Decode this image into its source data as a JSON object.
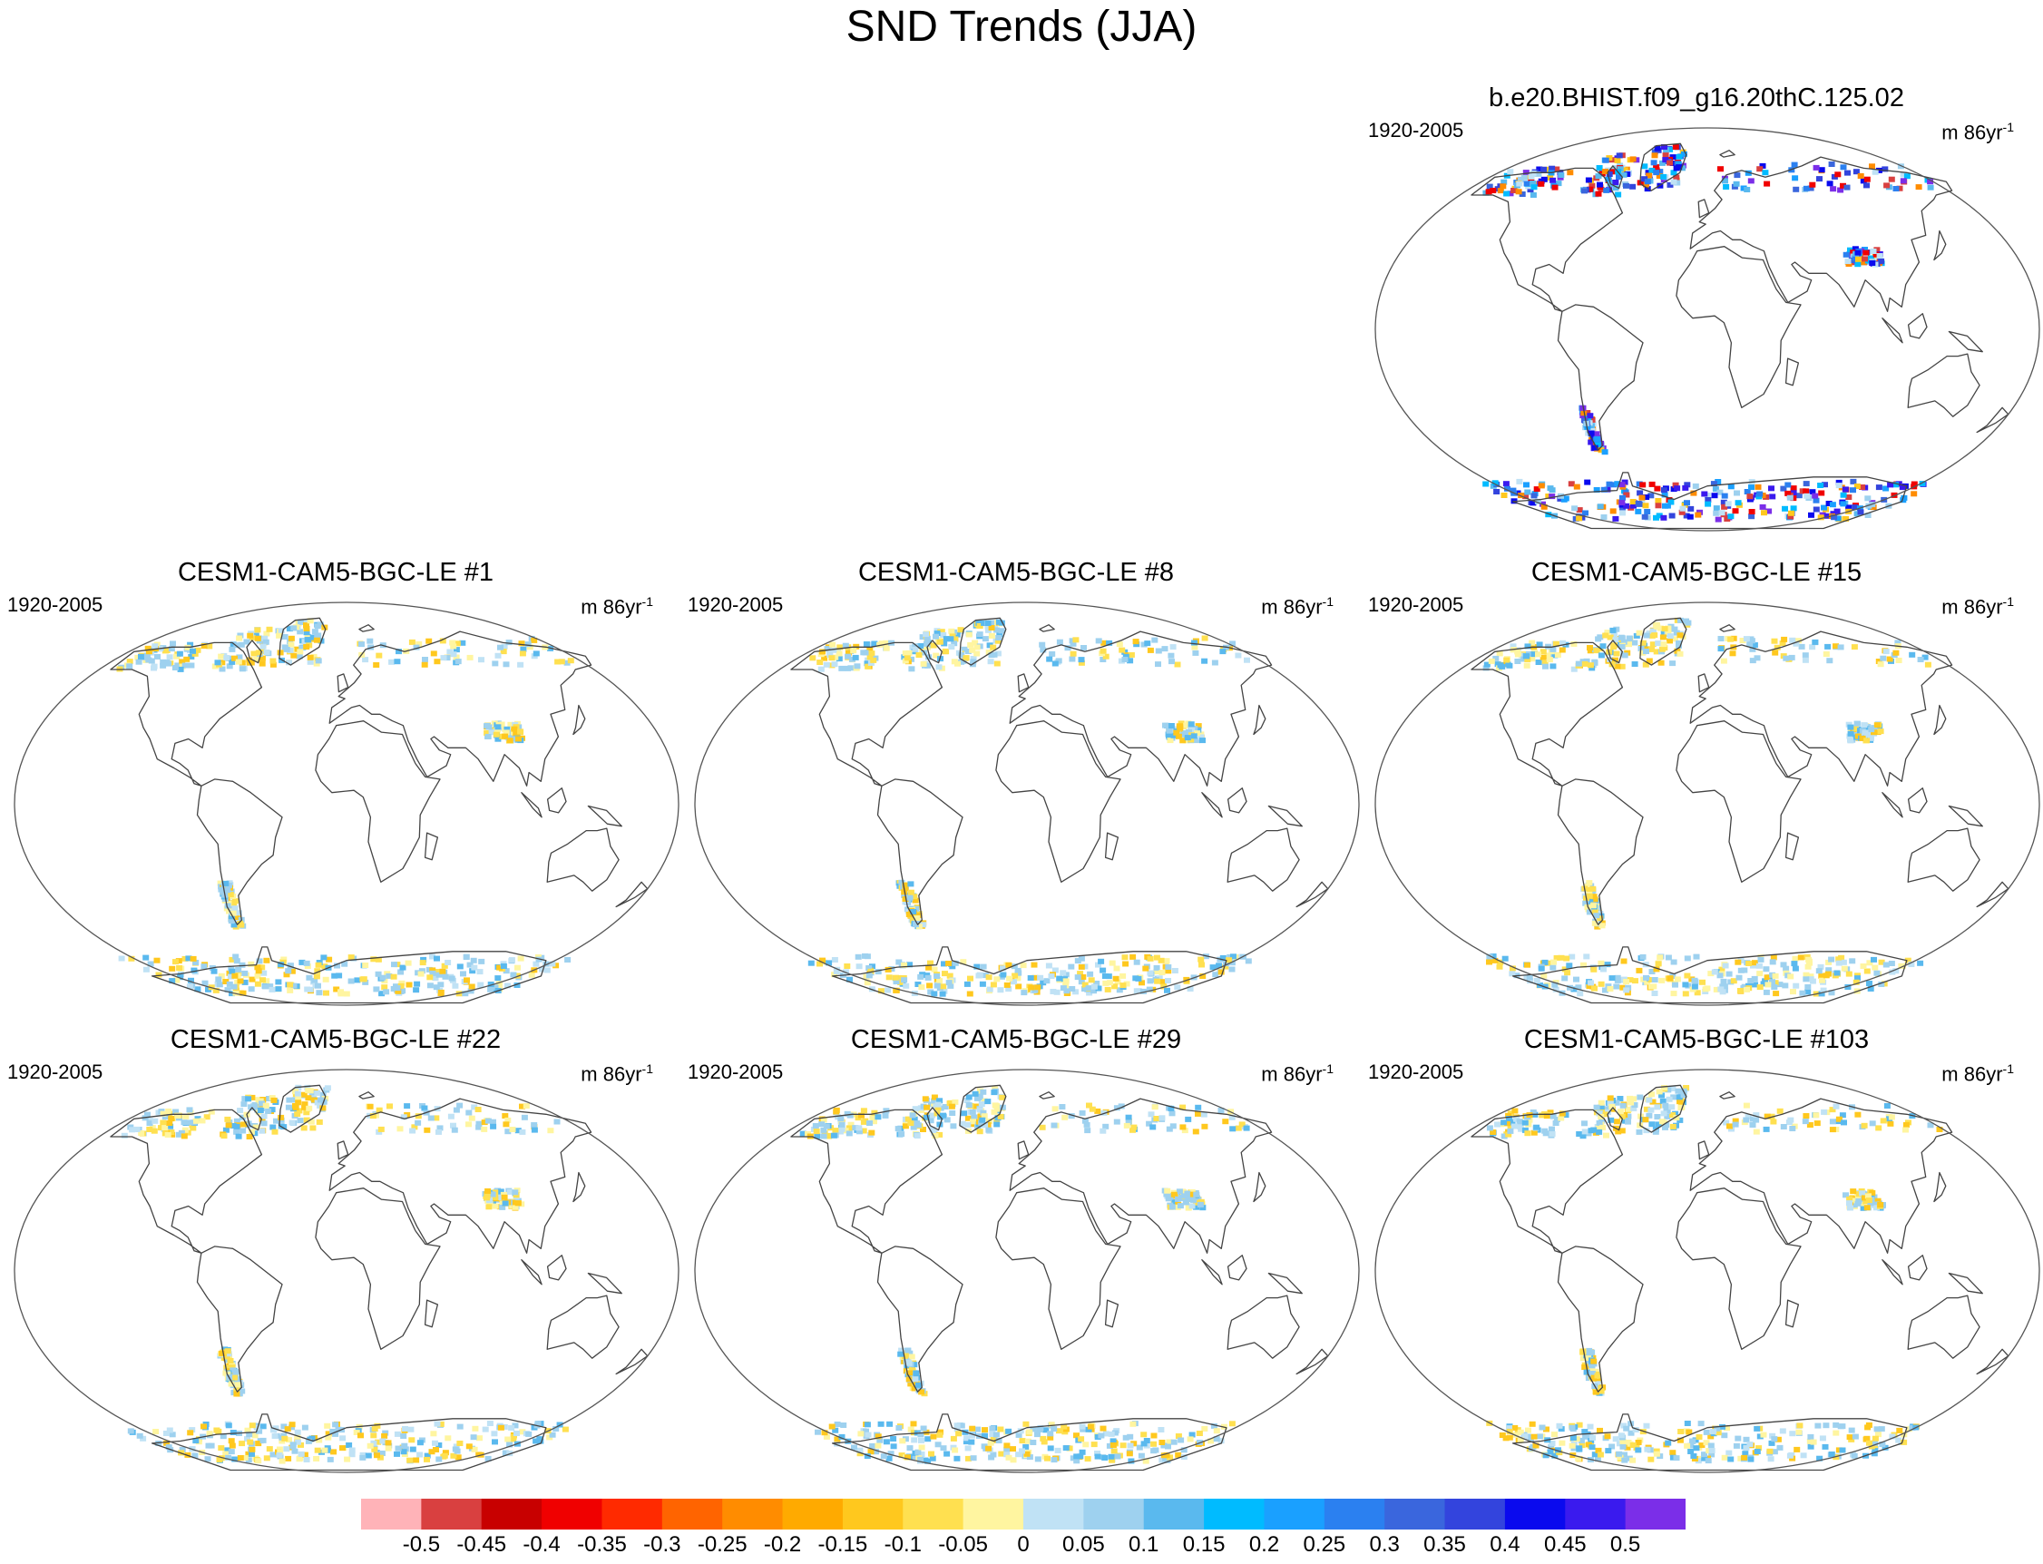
{
  "figure": {
    "title": "SND Trends (JJA)",
    "panels": [
      {
        "title": "b.e20.BHIST.f09_g16.20thC.125.02",
        "period": "1920-2005",
        "units_base": "m 86yr",
        "units_exp": "-1",
        "style": "strong"
      },
      {
        "title": "CESM1-CAM5-BGC-LE #1",
        "period": "1920-2005",
        "units_base": "m 86yr",
        "units_exp": "-1",
        "style": "weak"
      },
      {
        "title": "CESM1-CAM5-BGC-LE #8",
        "period": "1920-2005",
        "units_base": "m 86yr",
        "units_exp": "-1",
        "style": "weak"
      },
      {
        "title": "CESM1-CAM5-BGC-LE #15",
        "period": "1920-2005",
        "units_base": "m 86yr",
        "units_exp": "-1",
        "style": "weak"
      },
      {
        "title": "CESM1-CAM5-BGC-LE #22",
        "period": "1920-2005",
        "units_base": "m 86yr",
        "units_exp": "-1",
        "style": "weak"
      },
      {
        "title": "CESM1-CAM5-BGC-LE #29",
        "period": "1920-2005",
        "units_base": "m 86yr",
        "units_exp": "-1",
        "style": "weak"
      },
      {
        "title": "CESM1-CAM5-BGC-LE #103",
        "period": "1920-2005",
        "units_base": "m 86yr",
        "units_exp": "-1",
        "style": "weak"
      }
    ]
  },
  "colorbar": {
    "labels": [
      "-0.5",
      "-0.45",
      "-0.4",
      "-0.35",
      "-0.3",
      "-0.25",
      "-0.2",
      "-0.15",
      "-0.1",
      "-0.05",
      "0",
      "0.05",
      "0.1",
      "0.15",
      "0.2",
      "0.25",
      "0.3",
      "0.35",
      "0.4",
      "0.45",
      "0.5"
    ],
    "colors": [
      "#ffb3b8",
      "#d94040",
      "#c80000",
      "#f00000",
      "#ff2a00",
      "#ff6400",
      "#ff8c00",
      "#ffaa00",
      "#ffc81e",
      "#ffe050",
      "#fff5a0",
      "#c0e2f5",
      "#9ed1ef",
      "#5ab9ee",
      "#00bbff",
      "#1aa0ff",
      "#2b80f0",
      "#3a66dd",
      "#3344dd",
      "#0a0aee",
      "#3a1aee",
      "#7b2ee8"
    ]
  }
}
